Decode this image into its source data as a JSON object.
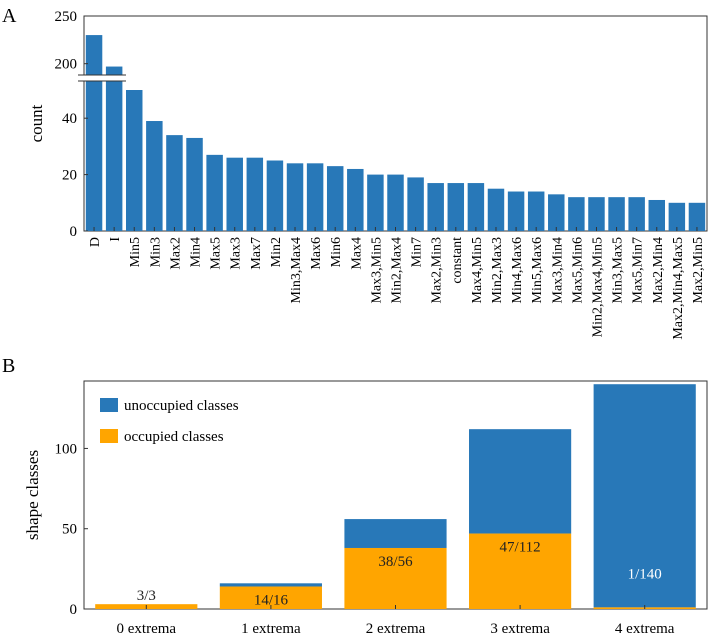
{
  "chart_data": [
    {
      "panel_label": "A",
      "type": "bar",
      "ylabel": "count",
      "xlabel": "",
      "axis_break": {
        "lower_range": [
          0,
          50
        ],
        "upper_range": [
          185,
          250
        ]
      },
      "yticks": [
        0,
        20,
        40,
        200,
        250
      ],
      "color": "#2878b8",
      "categories": [
        "D",
        "I",
        "Min5",
        "Min3",
        "Max2",
        "Min4",
        "Max5",
        "Max3",
        "Max7",
        "Min2",
        "Min3,Max4",
        "Max6",
        "Min6",
        "Max4",
        "Max3,Min5",
        "Min2,Max4",
        "Min7",
        "Max2,Min3",
        "constant",
        "Max4,Min5",
        "Min2,Max3",
        "Min4,Max6",
        "Min5,Max6",
        "Max3,Min4",
        "Max5,Min6",
        "Min2,Max4,Min5",
        "Min3,Max5",
        "Max5,Min7",
        "Max2,Min4",
        "Max2,Min4,Max5",
        "Max2,Min5"
      ],
      "values": [
        230,
        197,
        50,
        39,
        34,
        33,
        27,
        26,
        26,
        25,
        24,
        24,
        23,
        22,
        20,
        20,
        19,
        17,
        17,
        17,
        15,
        14,
        14,
        13,
        12,
        12,
        12,
        12,
        11,
        10,
        10
      ]
    },
    {
      "panel_label": "B",
      "type": "bar",
      "stacked": true,
      "ylabel": "shape classes",
      "xlabel": "",
      "ylim": [
        0,
        142
      ],
      "yticks": [
        0,
        50,
        100
      ],
      "categories": [
        "0 extrema",
        "1 extrema",
        "2 extrema",
        "3 extrema",
        "4 extrema"
      ],
      "series": [
        {
          "name": "occupied classes",
          "color": "#ffa500",
          "values": [
            3,
            14,
            38,
            47,
            1
          ]
        },
        {
          "name": "unoccupied classes",
          "color": "#2878b8",
          "values": [
            0,
            2,
            18,
            65,
            139
          ]
        }
      ],
      "data_labels": [
        "3/3",
        "14/16",
        "38/56",
        "47/112",
        "1/140"
      ],
      "legend_position": "top-left",
      "legend_order": [
        "unoccupied classes",
        "occupied classes"
      ]
    }
  ]
}
